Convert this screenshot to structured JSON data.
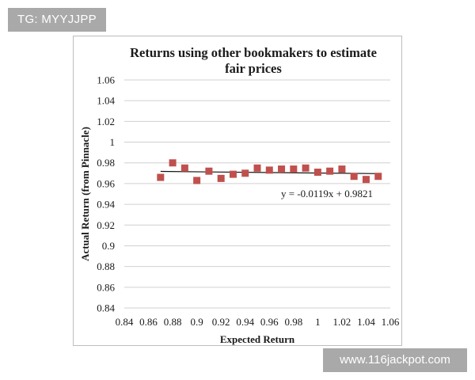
{
  "watermarks": {
    "top_left": "TG: MYYJJPP",
    "bottom_right": "www.116jackpot.com"
  },
  "chart_data": {
    "type": "scatter",
    "title_lines": [
      "Returns using other bookmakers to estimate",
      "fair prices"
    ],
    "xlabel": "Expected Return",
    "ylabel": "Actual Return (from Pinnacle)",
    "xlim": [
      0.84,
      1.06
    ],
    "ylim": [
      0.84,
      1.06
    ],
    "xticks": [
      0.84,
      0.86,
      0.88,
      0.9,
      0.92,
      0.94,
      0.96,
      0.98,
      1,
      1.02,
      1.04,
      1.06
    ],
    "xtick_labels": [
      "0.84",
      "0.86",
      "0.88",
      "0.9",
      "0.92",
      "0.94",
      "0.96",
      "0.98",
      "1",
      "1.02",
      "1.04",
      "1.06"
    ],
    "yticks": [
      0.84,
      0.86,
      0.88,
      0.9,
      0.92,
      0.94,
      0.96,
      0.98,
      1,
      1.02,
      1.04,
      1.06
    ],
    "ytick_labels": [
      "0.84",
      "0.86",
      "0.88",
      "0.9",
      "0.92",
      "0.94",
      "0.96",
      "0.98",
      "1",
      "1.02",
      "1.04",
      "1.06"
    ],
    "grid": "horizontal",
    "marker_color": "#c0504d",
    "points": [
      {
        "x": 0.87,
        "y": 0.966
      },
      {
        "x": 0.88,
        "y": 0.98
      },
      {
        "x": 0.89,
        "y": 0.975
      },
      {
        "x": 0.9,
        "y": 0.963
      },
      {
        "x": 0.91,
        "y": 0.972
      },
      {
        "x": 0.92,
        "y": 0.965
      },
      {
        "x": 0.93,
        "y": 0.969
      },
      {
        "x": 0.94,
        "y": 0.97
      },
      {
        "x": 0.95,
        "y": 0.975
      },
      {
        "x": 0.96,
        "y": 0.973
      },
      {
        "x": 0.97,
        "y": 0.974
      },
      {
        "x": 0.98,
        "y": 0.974
      },
      {
        "x": 0.99,
        "y": 0.975
      },
      {
        "x": 1.0,
        "y": 0.971
      },
      {
        "x": 1.01,
        "y": 0.972
      },
      {
        "x": 1.02,
        "y": 0.974
      },
      {
        "x": 1.03,
        "y": 0.967
      },
      {
        "x": 1.04,
        "y": 0.964
      },
      {
        "x": 1.05,
        "y": 0.967
      }
    ],
    "trendline": {
      "slope": -0.0119,
      "intercept": 0.9821,
      "x_range": [
        0.87,
        1.05
      ],
      "equation": "y = -0.0119x + 0.9821"
    }
  }
}
